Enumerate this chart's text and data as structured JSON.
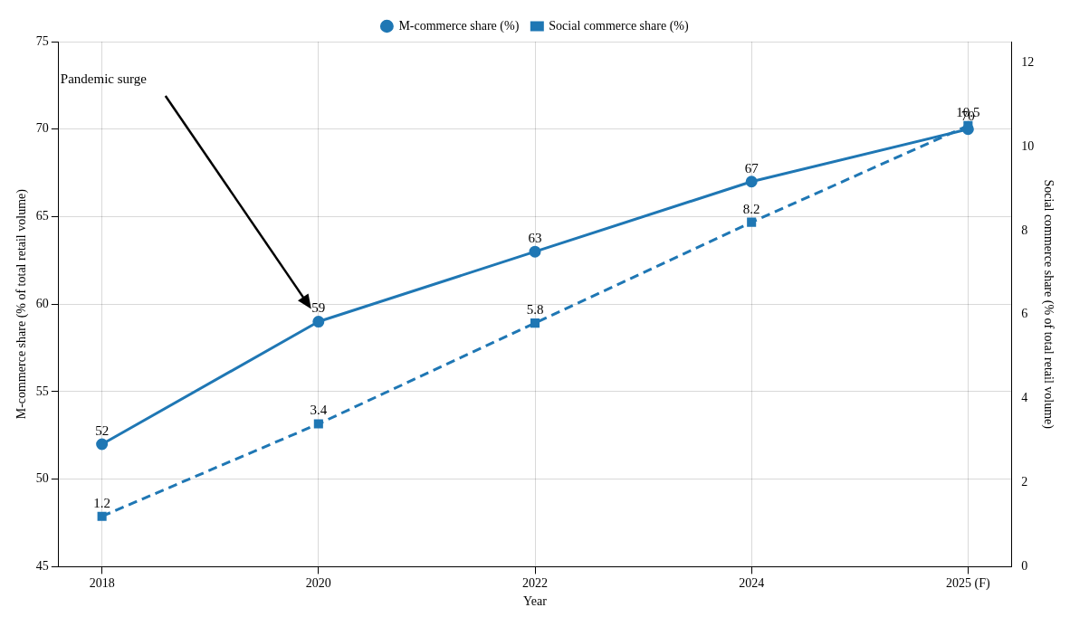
{
  "chart_data": {
    "type": "line",
    "xlabel": "Year",
    "ylabel": "M-commerce share (% of total retail volume)",
    "y2label": "Social commerce share (% of total retail volume)",
    "categories": [
      "2018",
      "2020",
      "2022",
      "2024",
      "2025 (F)"
    ],
    "series": [
      {
        "name": "M-commerce share (%)",
        "color": "#1f77b4",
        "values": [
          52,
          59,
          63,
          67,
          70
        ],
        "marker": "circle",
        "line_style": "solid"
      },
      {
        "name": "Social commerce share (%)",
        "color": "#1f77b4",
        "values": [
          1.2,
          3.4,
          5.8,
          8.2,
          10.5
        ],
        "marker": "square",
        "line_style": "dashed",
        "axis": "y2"
      }
    ],
    "ylim": [
      45,
      75
    ],
    "yticks": [
      45,
      50,
      55,
      60,
      65,
      70,
      75
    ],
    "y2lim": [
      0,
      12.5
    ],
    "y2ticks": [
      0,
      2,
      4,
      6,
      8,
      10,
      12
    ],
    "grid": true,
    "legend": "top",
    "data_labels": true,
    "annotations": [
      "Pandemic surge"
    ]
  }
}
